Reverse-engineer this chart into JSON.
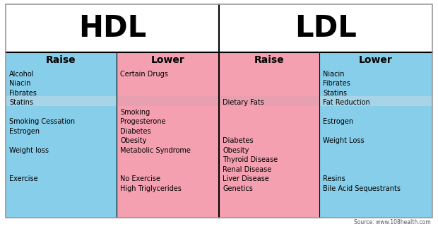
{
  "title_hdl": "HDL",
  "title_ldl": "LDL",
  "bg_color": "#ffffff",
  "blue_color": "#87CEEB",
  "pink_color": "#F4A0B0",
  "pink_highlight": "#E8A0B0",
  "blue_highlight": "#A8D4E8",
  "col_headers": [
    "Raise",
    "Lower",
    "Raise",
    "Lower"
  ],
  "source_text": "Source: www.108health.com",
  "border_color": "#999999",
  "hdl_raise_lines": [
    "Alcohol",
    "Niacin",
    "Fibrates",
    "Statins",
    "",
    "Smoking Cessation",
    "Estrogen",
    "",
    "Weight loss",
    "",
    "",
    "Exercise"
  ],
  "hdl_lower_lines": [
    "Certain Drugs",
    "",
    "",
    "",
    "Smoking",
    "Progesterone",
    "Diabetes",
    "Obesity",
    "Metabolic Syndrome",
    "",
    "",
    "No Exercise",
    "High Triglycerides"
  ],
  "ldl_raise_lines": [
    "",
    "",
    "",
    "Dietary Fats",
    "",
    "",
    "",
    "Diabetes",
    "Obesity",
    "Thyroid Disease",
    "Renal Disease",
    "Liver Disease",
    "Genetics"
  ],
  "ldl_lower_lines": [
    "Niacin",
    "Fibrates",
    "Statins",
    "Fat Reduction",
    "",
    "Estrogen",
    "",
    "Weight Loss",
    "",
    "",
    "",
    "Resins",
    "Bile Acid Sequestrants"
  ],
  "fig_w": 6.2,
  "fig_h": 3.24,
  "dpi": 100
}
